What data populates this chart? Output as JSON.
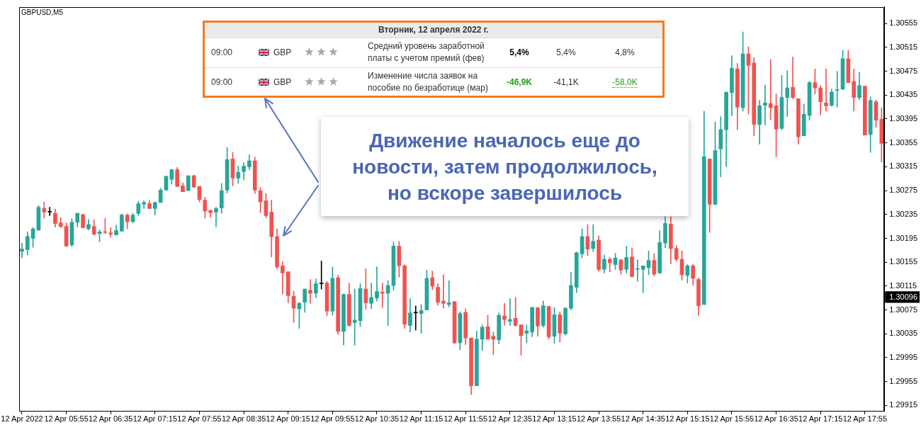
{
  "chart_data": {
    "type": "candlestick",
    "title": "GBPUSD,M5",
    "categories": [
      "12 Apr 2022",
      null,
      null,
      null,
      null,
      null,
      null,
      null,
      "12 Apr 05:55",
      null,
      null,
      null,
      null,
      null,
      null,
      null,
      "12 Apr 06:35",
      null,
      null,
      null,
      null,
      null,
      null,
      null,
      "12 Apr 07:15",
      null,
      null,
      null,
      null,
      null,
      null,
      null,
      "12 Apr 07:55",
      null,
      null,
      null,
      null,
      null,
      null,
      null,
      "12 Apr 08:35",
      null,
      null,
      null,
      null,
      null,
      null,
      null,
      "12 Apr 09:15",
      null,
      null,
      null,
      null,
      null,
      null,
      null,
      "12 Apr 09:55",
      null,
      null,
      null,
      null,
      null,
      null,
      null,
      "12 Apr 10:35",
      null,
      null,
      null,
      null,
      null,
      null,
      null,
      "12 Apr 11:15",
      null,
      null,
      null,
      null,
      null,
      null,
      null,
      "12 Apr 11:55",
      null,
      null,
      null,
      null,
      null,
      null,
      null,
      "12 Apr 12:35",
      null,
      null,
      null,
      null,
      null,
      null,
      null,
      "12 Apr 13:15",
      null,
      null,
      null,
      null,
      null,
      null,
      null,
      "12 Apr 13:55",
      null,
      null,
      null,
      null,
      null,
      null,
      null,
      "12 Apr 14:35",
      null,
      null,
      null,
      null,
      null,
      null,
      null,
      "12 Apr 15:15",
      null,
      null,
      null,
      null,
      null,
      null,
      null,
      "12 Apr 15:55",
      null,
      null,
      null,
      null,
      null,
      null,
      null,
      "12 Apr 16:35",
      null,
      null,
      null,
      null,
      null,
      null,
      null,
      "12 Apr 17:15",
      null,
      null,
      null,
      null,
      null,
      null,
      null,
      "12 Apr 17:55",
      null,
      null,
      null
    ],
    "ohlc": [
      [
        1.30173,
        1.30187,
        1.30162,
        1.30177
      ],
      [
        1.30176,
        1.30206,
        1.30167,
        1.30198
      ],
      [
        1.30195,
        1.30213,
        1.3018,
        1.30211
      ],
      [
        1.30209,
        1.3025,
        1.30208,
        1.30247
      ],
      [
        1.30245,
        1.30256,
        1.30229,
        1.30239
      ],
      [
        1.30239,
        1.30247,
        1.30233,
        1.30239
      ],
      [
        1.30237,
        1.30244,
        1.30214,
        1.3022
      ],
      [
        1.30221,
        1.3023,
        1.30213,
        1.30215
      ],
      [
        1.30215,
        1.30221,
        1.30181,
        1.30182
      ],
      [
        1.30184,
        1.30228,
        1.30181,
        1.30222
      ],
      [
        1.30222,
        1.30237,
        1.30214,
        1.30237
      ],
      [
        1.30235,
        1.30235,
        1.30213,
        1.30213
      ],
      [
        1.30211,
        1.30227,
        1.30209,
        1.30218
      ],
      [
        1.30215,
        1.30226,
        1.302,
        1.30202
      ],
      [
        1.30203,
        1.30209,
        1.30189,
        1.30206
      ],
      [
        1.30206,
        1.30228,
        1.30203,
        1.30205
      ],
      [
        1.30204,
        1.30213,
        1.30197,
        1.30202
      ],
      [
        1.30201,
        1.30217,
        1.302,
        1.30208
      ],
      [
        1.30207,
        1.30236,
        1.30207,
        1.30234
      ],
      [
        1.30234,
        1.30236,
        1.30211,
        1.30223
      ],
      [
        1.30223,
        1.30237,
        1.30221,
        1.30234
      ],
      [
        1.30237,
        1.30257,
        1.30233,
        1.30253
      ],
      [
        1.30252,
        1.30258,
        1.30245,
        1.30255
      ],
      [
        1.30253,
        1.30258,
        1.30245,
        1.30245
      ],
      [
        1.30245,
        1.30256,
        1.30234,
        1.30255
      ],
      [
        1.30255,
        1.30279,
        1.30255,
        1.30276
      ],
      [
        1.30276,
        1.30299,
        1.30275,
        1.30299
      ],
      [
        1.30294,
        1.30311,
        1.30286,
        1.3031
      ],
      [
        1.3031,
        1.30314,
        1.30281,
        1.30282
      ],
      [
        1.30283,
        1.30288,
        1.30273,
        1.30273
      ],
      [
        1.30275,
        1.303,
        1.30275,
        1.303
      ],
      [
        1.303,
        1.30301,
        1.3028,
        1.30281
      ],
      [
        1.30282,
        1.30282,
        1.30256,
        1.3026
      ],
      [
        1.30259,
        1.30264,
        1.30229,
        1.30241
      ],
      [
        1.30242,
        1.30242,
        1.3023,
        1.30238
      ],
      [
        1.30239,
        1.30247,
        1.30214,
        1.30245
      ],
      [
        1.30246,
        1.30287,
        1.30237,
        1.30275
      ],
      [
        1.30276,
        1.30347,
        1.30271,
        1.30327
      ],
      [
        1.30328,
        1.30339,
        1.30283,
        1.30296
      ],
      [
        1.30296,
        1.30316,
        1.30287,
        1.30306
      ],
      [
        1.30307,
        1.30322,
        1.30293,
        1.30316
      ],
      [
        1.30315,
        1.30335,
        1.3031,
        1.30325
      ],
      [
        1.30325,
        1.30331,
        1.3027,
        1.30276
      ],
      [
        1.30275,
        1.3028,
        1.30238,
        1.30256
      ],
      [
        1.30258,
        1.3027,
        1.30229,
        1.30233
      ],
      [
        1.30239,
        1.30259,
        1.30164,
        1.30198
      ],
      [
        1.30198,
        1.30211,
        1.30144,
        1.30147
      ],
      [
        1.30149,
        1.30156,
        1.30102,
        1.30137
      ],
      [
        1.30139,
        1.30139,
        1.30087,
        1.30099
      ],
      [
        1.30098,
        1.30106,
        1.30054,
        1.30078
      ],
      [
        1.30077,
        1.30088,
        1.30044,
        1.30086
      ],
      [
        1.30088,
        1.3011,
        1.30071,
        1.3011
      ],
      [
        1.30108,
        1.30126,
        1.30086,
        1.30103
      ],
      [
        1.30103,
        1.30127,
        1.30095,
        1.30119
      ],
      [
        1.30119,
        1.30157,
        1.3011,
        1.30119
      ],
      [
        1.3012,
        1.30123,
        1.30065,
        1.30073
      ],
      [
        1.30073,
        1.30147,
        1.30066,
        1.30128
      ],
      [
        1.30129,
        1.30133,
        1.30034,
        1.30039
      ],
      [
        1.30039,
        1.30102,
        1.30016,
        1.30101
      ],
      [
        1.30101,
        1.3012,
        1.30048,
        1.30049
      ],
      [
        1.30054,
        1.3011,
        1.30016,
        1.30058
      ],
      [
        1.30057,
        1.30119,
        1.30047,
        1.30111
      ],
      [
        1.3011,
        1.30144,
        1.30076,
        1.30087
      ],
      [
        1.30086,
        1.3012,
        1.30077,
        1.30096
      ],
      [
        1.30095,
        1.30147,
        1.3009,
        1.30106
      ],
      [
        1.30105,
        1.3012,
        1.30079,
        1.30103
      ],
      [
        1.30103,
        1.30124,
        1.30049,
        1.30116
      ],
      [
        1.30116,
        1.30189,
        1.30108,
        1.30182
      ],
      [
        1.30182,
        1.3019,
        1.3013,
        1.30149
      ],
      [
        1.30149,
        1.30151,
        1.30044,
        1.30051
      ],
      [
        1.30049,
        1.30094,
        1.30038,
        1.3007
      ],
      [
        1.3007,
        1.30082,
        1.30041,
        1.3007
      ],
      [
        1.30069,
        1.30084,
        1.30036,
        1.30074
      ],
      [
        1.30075,
        1.30142,
        1.30075,
        1.30128
      ],
      [
        1.30129,
        1.3014,
        1.30109,
        1.30115
      ],
      [
        1.30113,
        1.30119,
        1.30083,
        1.30088
      ],
      [
        1.3009,
        1.30134,
        1.30078,
        1.30086
      ],
      [
        1.30084,
        1.30124,
        1.3008,
        1.30087
      ],
      [
        1.30089,
        1.30089,
        1.30018,
        1.3002
      ],
      [
        1.3002,
        1.30072,
        1.30008,
        1.30069
      ],
      [
        1.30071,
        1.30077,
        1.30017,
        1.30028
      ],
      [
        1.30028,
        1.30028,
        1.29933,
        1.29948
      ],
      [
        1.29948,
        1.3004,
        1.29948,
        1.30026
      ],
      [
        1.30026,
        1.3005,
        1.30007,
        1.30046
      ],
      [
        1.30047,
        1.30066,
        1.30026,
        1.30026
      ],
      [
        1.30031,
        1.30038,
        1.3,
        1.30026
      ],
      [
        1.30025,
        1.3007,
        1.30018,
        1.30066
      ],
      [
        1.30065,
        1.30086,
        1.30049,
        1.30059
      ],
      [
        1.30056,
        1.30094,
        1.30049,
        1.30059
      ],
      [
        1.30061,
        1.30096,
        1.30048,
        1.30049
      ],
      [
        1.3005,
        1.3005,
        1.29999,
        1.30032
      ],
      [
        1.30036,
        1.3005,
        1.3002,
        1.3004
      ],
      [
        1.30038,
        1.3008,
        1.3003,
        1.30079
      ],
      [
        1.30079,
        1.30079,
        1.30031,
        1.30048
      ],
      [
        1.30049,
        1.3009,
        1.30046,
        1.30082
      ],
      [
        1.30081,
        1.30081,
        1.30026,
        1.3003
      ],
      [
        1.30031,
        1.30079,
        1.30019,
        1.30067
      ],
      [
        1.30067,
        1.30072,
        1.30021,
        1.30036
      ],
      [
        1.30035,
        1.30079,
        1.30033,
        1.30078
      ],
      [
        1.30078,
        1.30138,
        1.30075,
        1.30116
      ],
      [
        1.30113,
        1.30172,
        1.30104,
        1.30171
      ],
      [
        1.30169,
        1.30211,
        1.30162,
        1.30198
      ],
      [
        1.30198,
        1.30218,
        1.30166,
        1.30177
      ],
      [
        1.30178,
        1.30218,
        1.30173,
        1.3019
      ],
      [
        1.30192,
        1.30199,
        1.3014,
        1.30143
      ],
      [
        1.30143,
        1.30167,
        1.30137,
        1.3016
      ],
      [
        1.3016,
        1.30163,
        1.30139,
        1.30154
      ],
      [
        1.30151,
        1.3017,
        1.30143,
        1.30162
      ],
      [
        1.30159,
        1.30159,
        1.30135,
        1.30142
      ],
      [
        1.30143,
        1.30182,
        1.30137,
        1.30163
      ],
      [
        1.30164,
        1.30179,
        1.3013,
        1.30131
      ],
      [
        1.30143,
        1.30159,
        1.30123,
        1.30143
      ],
      [
        1.30143,
        1.30149,
        1.30104,
        1.30149
      ],
      [
        1.30146,
        1.30174,
        1.30134,
        1.30158
      ],
      [
        1.30158,
        1.3017,
        1.30132,
        1.30135
      ],
      [
        1.30137,
        1.30208,
        1.30136,
        1.30188
      ],
      [
        1.30187,
        1.30231,
        1.30179,
        1.3022
      ],
      [
        1.30219,
        1.30231,
        1.30152,
        1.30178
      ],
      [
        1.30178,
        1.30183,
        1.30157,
        1.3016
      ],
      [
        1.3016,
        1.30174,
        1.30125,
        1.30134
      ],
      [
        1.30133,
        1.30151,
        1.3012,
        1.30149
      ],
      [
        1.30149,
        1.30151,
        1.30116,
        1.30128
      ],
      [
        1.30126,
        1.30129,
        1.30066,
        1.30082
      ],
      [
        1.30084,
        1.30408,
        1.30084,
        1.30332
      ],
      [
        1.30328,
        1.30328,
        1.30205,
        1.30252
      ],
      [
        1.30252,
        1.3039,
        1.30251,
        1.30342
      ],
      [
        1.30345,
        1.30399,
        1.30298,
        1.30377
      ],
      [
        1.30377,
        1.3044,
        1.30315,
        1.3044
      ],
      [
        1.30439,
        1.30501,
        1.304,
        1.3048
      ],
      [
        1.30479,
        1.30488,
        1.30377,
        1.30415
      ],
      [
        1.30414,
        1.30541,
        1.30408,
        1.30504
      ],
      [
        1.30504,
        1.30516,
        1.30403,
        1.30485
      ],
      [
        1.30489,
        1.30498,
        1.30367,
        1.30386
      ],
      [
        1.30386,
        1.30426,
        1.30353,
        1.30417
      ],
      [
        1.30418,
        1.30452,
        1.30385,
        1.30422
      ],
      [
        1.30421,
        1.30495,
        1.30394,
        1.30414
      ],
      [
        1.30417,
        1.30437,
        1.30332,
        1.30378
      ],
      [
        1.30379,
        1.30468,
        1.30377,
        1.30431
      ],
      [
        1.30431,
        1.30476,
        1.30399,
        1.30447
      ],
      [
        1.30448,
        1.30499,
        1.30429,
        1.30431
      ],
      [
        1.30429,
        1.30429,
        1.30353,
        1.30365
      ],
      [
        1.30367,
        1.3042,
        1.30367,
        1.30403
      ],
      [
        1.30401,
        1.30458,
        1.30393,
        1.30456
      ],
      [
        1.30456,
        1.30479,
        1.30437,
        1.30447
      ],
      [
        1.30447,
        1.30451,
        1.30402,
        1.30424
      ],
      [
        1.30422,
        1.30479,
        1.30408,
        1.30417
      ],
      [
        1.30418,
        1.30445,
        1.30416,
        1.3044
      ],
      [
        1.30443,
        1.30475,
        1.30415,
        1.30444
      ],
      [
        1.30445,
        1.3051,
        1.30444,
        1.30496
      ],
      [
        1.30496,
        1.3051,
        1.30456,
        1.30456
      ],
      [
        1.30458,
        1.30479,
        1.30408,
        1.30431
      ],
      [
        1.30431,
        1.30473,
        1.30427,
        1.30451
      ],
      [
        1.3045,
        1.3045,
        1.30368,
        1.30368
      ],
      [
        1.30369,
        1.30432,
        1.30339,
        1.30426
      ],
      [
        1.30424,
        1.30427,
        1.30381,
        1.30393
      ],
      [
        1.30395,
        1.30414,
        1.30323,
        1.30354
      ]
    ],
    "colors": [
      "#26a69a",
      "#26a69a",
      "#26a69a",
      "#26a69a",
      "#ef5350",
      "#000000",
      "#ef5350",
      "#ef5350",
      "#ef5350",
      "#26a69a",
      "#26a69a",
      "#ef5350",
      "#26a69a",
      "#ef5350",
      "#26a69a",
      "#ef5350",
      "#ef5350",
      "#26a69a",
      "#26a69a",
      "#ef5350",
      "#26a69a",
      "#26a69a",
      "#26a69a",
      "#ef5350",
      "#26a69a",
      "#26a69a",
      "#26a69a",
      "#26a69a",
      "#ef5350",
      "#ef5350",
      "#26a69a",
      "#ef5350",
      "#ef5350",
      "#ef5350",
      "#ef5350",
      "#26a69a",
      "#26a69a",
      "#26a69a",
      "#ef5350",
      "#26a69a",
      "#26a69a",
      "#26a69a",
      "#ef5350",
      "#ef5350",
      "#ef5350",
      "#ef5350",
      "#ef5350",
      "#ef5350",
      "#ef5350",
      "#ef5350",
      "#26a69a",
      "#26a69a",
      "#ef5350",
      "#26a69a",
      "#000000",
      "#ef5350",
      "#26a69a",
      "#ef5350",
      "#26a69a",
      "#ef5350",
      "#26a69a",
      "#26a69a",
      "#ef5350",
      "#26a69a",
      "#26a69a",
      "#ef5350",
      "#26a69a",
      "#26a69a",
      "#ef5350",
      "#ef5350",
      "#26a69a",
      "#000000",
      "#26a69a",
      "#26a69a",
      "#ef5350",
      "#ef5350",
      "#ef5350",
      "#26a69a",
      "#ef5350",
      "#26a69a",
      "#ef5350",
      "#ef5350",
      "#26a69a",
      "#26a69a",
      "#ef5350",
      "#ef5350",
      "#26a69a",
      "#ef5350",
      "#26a69a",
      "#ef5350",
      "#ef5350",
      "#26a69a",
      "#26a69a",
      "#ef5350",
      "#26a69a",
      "#ef5350",
      "#26a69a",
      "#ef5350",
      "#26a69a",
      "#26a69a",
      "#26a69a",
      "#26a69a",
      "#ef5350",
      "#26a69a",
      "#ef5350",
      "#26a69a",
      "#ef5350",
      "#26a69a",
      "#ef5350",
      "#26a69a",
      "#ef5350",
      "#26a69a",
      "#26a69a",
      "#26a69a",
      "#ef5350",
      "#26a69a",
      "#26a69a",
      "#ef5350",
      "#ef5350",
      "#ef5350",
      "#26a69a",
      "#ef5350",
      "#ef5350",
      "#26a69a",
      "#ef5350",
      "#26a69a",
      "#26a69a",
      "#26a69a",
      "#26a69a",
      "#ef5350",
      "#26a69a",
      "#ef5350",
      "#ef5350",
      "#26a69a",
      "#26a69a",
      "#ef5350",
      "#ef5350",
      "#26a69a",
      "#26a69a",
      "#ef5350",
      "#ef5350",
      "#26a69a",
      "#26a69a",
      "#ef5350",
      "#ef5350",
      "#ef5350",
      "#26a69a",
      "#26a69a",
      "#26a69a",
      "#ef5350",
      "#ef5350",
      "#26a69a",
      "#ef5350",
      "#26a69a",
      "#ef5350",
      "#ef5350"
    ],
    "ylim": [
      1.29905,
      1.30583
    ],
    "yticks": [
      1.29915,
      1.29955,
      1.29995,
      1.30035,
      1.30075,
      {
        "value": 1.30096,
        "label": "1.30096"
      },
      1.30115,
      1.30155,
      1.30195,
      1.30235,
      1.30275,
      1.30315,
      1.30355,
      1.30395,
      1.30435,
      1.30475,
      1.30515,
      1.30555
    ],
    "annotations": [
      "Вторник, 12 апреля 2022 г.",
      "09:00",
      "GBP",
      "Средний уровень заработной платы с учетом премий (фев)",
      "5,4%",
      "5,4%",
      "4,8%",
      "09:00",
      "GBP",
      "Изменение числа заявок на пособие по безработице (мар)",
      "-46,9K",
      "-41,1K",
      "-58,0K",
      "Движение началось еще до новости, затем продолжилось, но вскоре завершилось"
    ]
  }
}
